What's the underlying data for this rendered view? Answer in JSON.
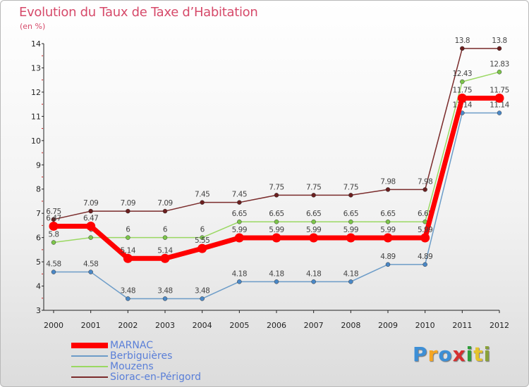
{
  "title": "Evolution du Taux de Taxe d’Habitation",
  "unit": "(en %)",
  "logo": {
    "text": "Proxiti",
    "letter_colors": [
      "#3d8fd6",
      "#f5a623",
      "#3d8fd6",
      "#d62f2f",
      "#2e9e3a",
      "#e5c42c",
      "#8aa23a"
    ]
  },
  "chart_data": {
    "type": "line",
    "categories": [
      "2000",
      "2001",
      "2002",
      "2003",
      "2004",
      "2005",
      "2006",
      "2007",
      "2008",
      "2009",
      "2010",
      "2011",
      "2012"
    ],
    "ylim": [
      3,
      14
    ],
    "yticks": [
      3,
      4,
      5,
      6,
      7,
      8,
      9,
      10,
      11,
      12,
      13,
      14
    ],
    "grid": false,
    "legend": "bottom-left",
    "series": [
      {
        "name": "Siorac-en-Périgord",
        "color": "#7a2b2b",
        "marker": "#6b1f1f",
        "width": 1.5,
        "values": [
          6.75,
          7.09,
          7.09,
          7.09,
          7.45,
          7.45,
          7.75,
          7.75,
          7.75,
          7.98,
          7.98,
          13.8,
          13.8
        ],
        "labels": [
          "6.75",
          "7.09",
          "7.09",
          "7.09",
          "7.45",
          "7.45",
          "7.75",
          "7.75",
          "7.75",
          "7.98",
          "7.98",
          "13.8",
          "13.8"
        ]
      },
      {
        "name": "Mouzens",
        "color": "#9ad862",
        "marker": "#7cc64a",
        "width": 1.5,
        "values": [
          5.8,
          6,
          6,
          6,
          6,
          6.65,
          6.65,
          6.65,
          6.65,
          6.65,
          6.65,
          12.43,
          12.83
        ],
        "labels": [
          "5.8",
          "6",
          "6",
          "6",
          "6",
          "6.65",
          "6.65",
          "6.65",
          "6.65",
          "6.65",
          "6.65",
          "12.43",
          "12.83"
        ]
      },
      {
        "name": "Berbiguières",
        "color": "#6c9cc8",
        "marker": "#4a88c7",
        "width": 1.5,
        "values": [
          4.58,
          4.58,
          3.48,
          3.48,
          3.48,
          4.18,
          4.18,
          4.18,
          4.18,
          4.89,
          4.89,
          11.14,
          11.14
        ],
        "labels": [
          "4.58",
          "4.58",
          "3.48",
          "3.48",
          "3.48",
          "4.18",
          "4.18",
          "4.18",
          "4.18",
          "4.89",
          "4.89",
          "11.14",
          "11.14"
        ]
      },
      {
        "name": "MARNAC",
        "color": "#ff0000",
        "marker": "#ff0000",
        "width": 7,
        "values": [
          6.47,
          6.47,
          5.14,
          5.14,
          5.55,
          5.99,
          5.99,
          5.99,
          5.99,
          5.99,
          5.99,
          11.75,
          11.75
        ],
        "labels": [
          "6.47",
          "6.47",
          "5.14",
          "5.14",
          "5.55",
          "5.99",
          "5.99",
          "5.99",
          "5.99",
          "5.99",
          "5.99",
          "11.75",
          "11.75"
        ]
      }
    ],
    "legend_order": [
      "MARNAC",
      "Berbiguières",
      "Mouzens",
      "Siorac-en-Périgord"
    ]
  }
}
